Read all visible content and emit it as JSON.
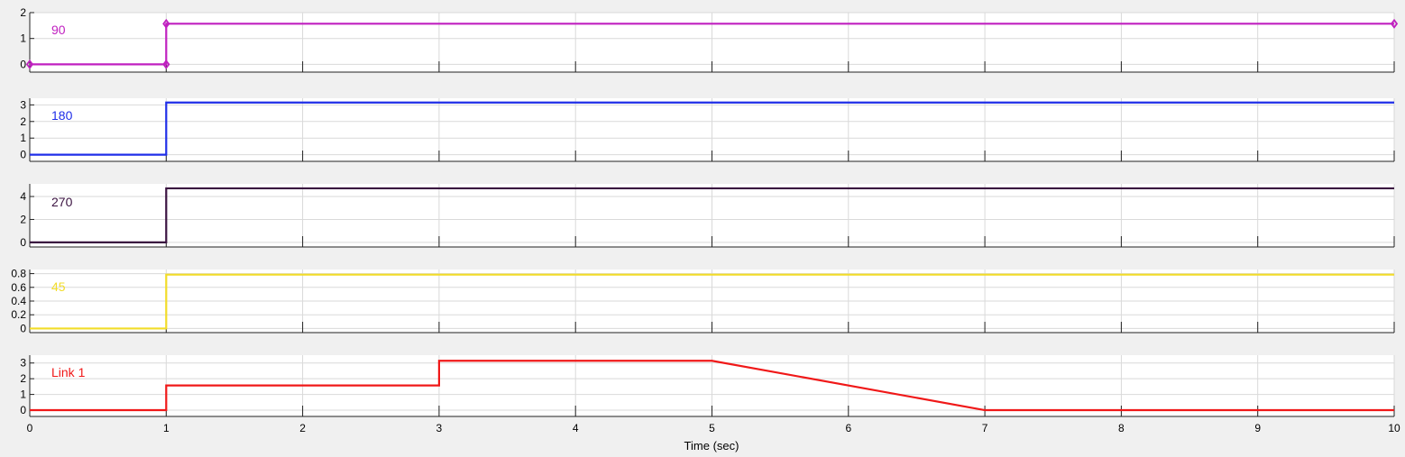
{
  "xlabel": "Time (sec)",
  "chart_data": [
    {
      "type": "line",
      "legend": "90",
      "color": "#c020c0",
      "markers": true,
      "ylim": [
        -0.3,
        2
      ],
      "yticks": [
        0,
        1,
        2
      ],
      "xlim": [
        0,
        10
      ],
      "xticks": [
        0,
        1,
        2,
        3,
        4,
        5,
        6,
        7,
        8,
        9,
        10
      ],
      "x": [
        0,
        1,
        1,
        10
      ],
      "y": [
        0,
        0,
        1.5708,
        1.5708
      ]
    },
    {
      "type": "line",
      "legend": "180",
      "color": "#1f2ee8",
      "ylim": [
        -0.4,
        3.4
      ],
      "yticks": [
        0,
        1,
        2,
        3
      ],
      "xlim": [
        0,
        10
      ],
      "xticks": [
        0,
        1,
        2,
        3,
        4,
        5,
        6,
        7,
        8,
        9,
        10
      ],
      "x": [
        0,
        1,
        1,
        10
      ],
      "y": [
        0,
        0,
        3.1416,
        3.1416
      ]
    },
    {
      "type": "line",
      "legend": "270",
      "color": "#3a1240",
      "ylim": [
        -0.4,
        5.1
      ],
      "yticks": [
        0,
        2,
        4
      ],
      "xlim": [
        0,
        10
      ],
      "xticks": [
        0,
        1,
        2,
        3,
        4,
        5,
        6,
        7,
        8,
        9,
        10
      ],
      "x": [
        0,
        1,
        1,
        10
      ],
      "y": [
        0,
        0,
        4.7124,
        4.7124
      ]
    },
    {
      "type": "line",
      "legend": "45",
      "color": "#f2dc28",
      "ylim": [
        -0.06,
        0.86
      ],
      "yticks": [
        0,
        0.2,
        0.4,
        0.6,
        0.8
      ],
      "xlim": [
        0,
        10
      ],
      "xticks": [
        0,
        1,
        2,
        3,
        4,
        5,
        6,
        7,
        8,
        9,
        10
      ],
      "x": [
        0,
        1,
        1,
        10
      ],
      "y": [
        0,
        0,
        0.7854,
        0.7854
      ]
    },
    {
      "type": "line",
      "legend": "Link 1",
      "color": "#f01818",
      "ylim": [
        -0.4,
        3.5
      ],
      "yticks": [
        0,
        1,
        2,
        3
      ],
      "xlim": [
        0,
        10
      ],
      "xticks": [
        0,
        1,
        2,
        3,
        4,
        5,
        6,
        7,
        8,
        9,
        10
      ],
      "x": [
        0,
        1,
        1,
        3,
        3,
        5,
        7,
        10
      ],
      "y": [
        0,
        0,
        1.5708,
        1.5708,
        3.1416,
        3.1416,
        0,
        0
      ]
    }
  ]
}
